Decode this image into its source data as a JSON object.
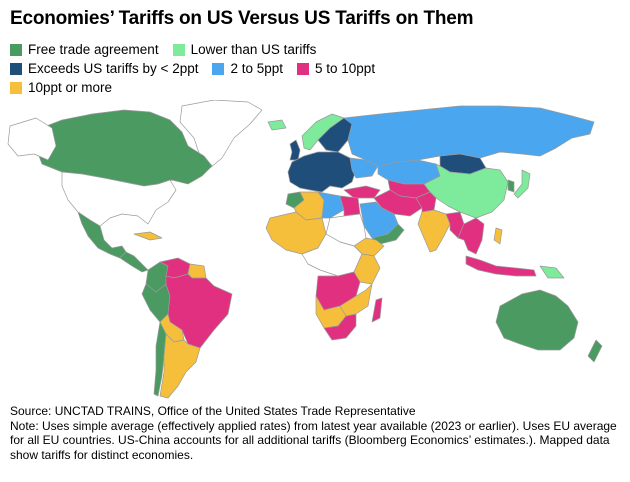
{
  "title": "Economies’ Tariffs on US Versus US Tariffs on Them",
  "colors": {
    "fta": "#4a9a62",
    "lower": "#7eea9b",
    "exceeds_lt2": "#1e4e79",
    "two_to_five": "#4aa6ee",
    "five_to_ten": "#e0307f",
    "ten_plus": "#f5bf3c",
    "no_data": "#ffffff",
    "border": "#9a9a9a"
  },
  "legend": [
    {
      "key": "fta",
      "label": "Free trade agreement"
    },
    {
      "key": "lower",
      "label": "Lower than US tariffs"
    },
    {
      "key": "exceeds_lt2",
      "label": "Exceeds US tariffs by < 2ppt"
    },
    {
      "key": "two_to_five",
      "label": "2 to 5ppt"
    },
    {
      "key": "five_to_ten",
      "label": "5 to 10ppt"
    },
    {
      "key": "ten_plus",
      "label": "10ppt or more"
    }
  ],
  "source": "Source: UNCTAD TRAINS, Office of the United States Trade Representative",
  "note": "Note: Uses simple average (effectively applied rates) from latest year available (2023 or earlier). Uses EU average for all EU countries. US-China accounts for all additional tariffs (Bloomberg Economics’ estimates.). Mapped data show tariffs for distinct economies."
}
